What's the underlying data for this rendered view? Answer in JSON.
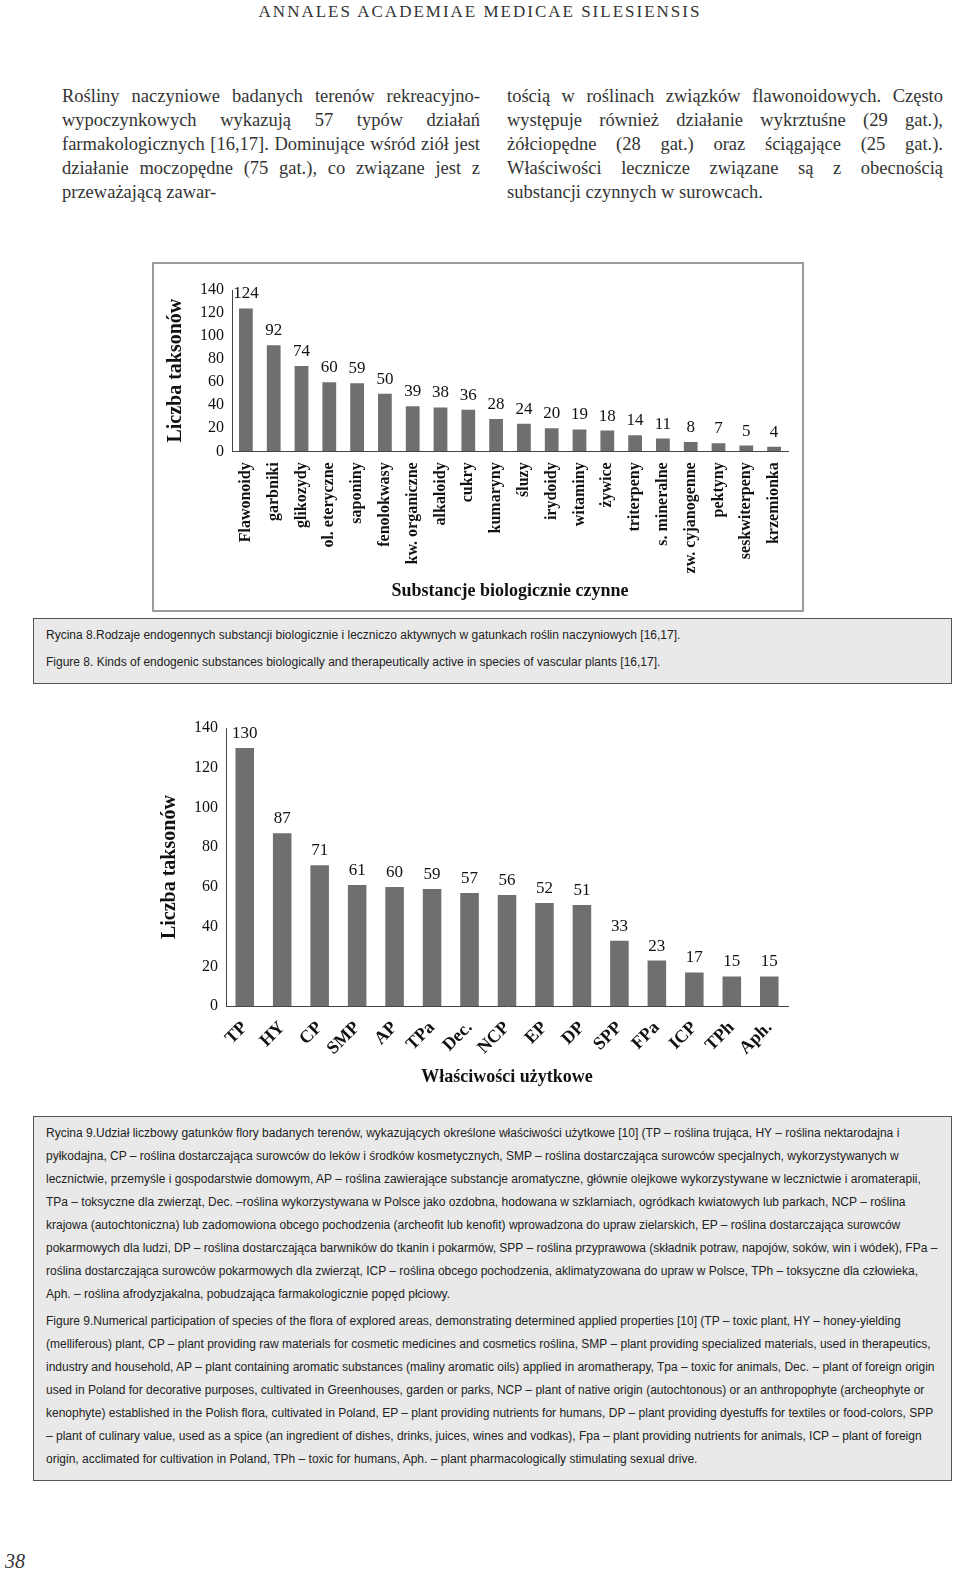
{
  "header": "ANNALES ACADEMIAE MEDICAE SILESIENSIS",
  "columns": [
    "Rośliny naczyniowe badanych terenów rekreacyjno-wypoczynkowych wykazują 57 typów działań farmakologicznych [16,17]. Dominujące wśród ziół jest działanie moczopędne (75 gat.), co związane jest z przeważającą zawar-",
    "tością w roślinach związków flawonoidowych. Często występuje również działanie wykrztuśne (29 gat.), żółciopędne (28 gat.) oraz ściągające (25 gat.). Właściwości lecznicze związane są z obecnością substancji czynnych w surowcach."
  ],
  "chart_data": [
    {
      "type": "bar",
      "x_label": "Substancje biologicznie czynne",
      "y_label": "Liczba taksonów",
      "categories": [
        "Flawonoidy",
        "garbniki",
        "glikozydy",
        "ol. eteryczne",
        "saponiny",
        "fenolokwasy",
        "kw. organiczne",
        "alkaloidy",
        "cukry",
        "kumaryny",
        "śluzy",
        "irydoidy",
        "witaminy",
        "żywice",
        "triterpeny",
        "s. mineralne",
        "zw. cyjanogenne",
        "pektyny",
        "seskwiterpeny",
        "krzemionka"
      ],
      "values": [
        124,
        92,
        74,
        60,
        59,
        50,
        39,
        38,
        36,
        28,
        24,
        20,
        19,
        18,
        14,
        11,
        8,
        7,
        5,
        4
      ],
      "color": "#6f6f6f",
      "ylim": [
        0,
        140
      ],
      "yticks": [
        0,
        20,
        40,
        60,
        80,
        100,
        120,
        140
      ],
      "grid": false,
      "data_labels": true
    },
    {
      "type": "bar",
      "x_label": "Właściwości użytkowe",
      "y_label": "Liczba taksonów",
      "categories": [
        "TP",
        "HY",
        "CP",
        "SMP",
        "AP",
        "TPa",
        "Dec.",
        "NCP",
        "EP",
        "DP",
        "SPP",
        "FPa",
        "ICP",
        "TPh",
        "Aph."
      ],
      "values": [
        130,
        87,
        71,
        61,
        60,
        59,
        57,
        56,
        52,
        51,
        33,
        23,
        17,
        15,
        15
      ],
      "color": "#6f6f6f",
      "ylim": [
        0,
        140
      ],
      "yticks": [
        0,
        20,
        40,
        60,
        80,
        100,
        120,
        140
      ],
      "grid": false,
      "data_labels": true
    }
  ],
  "captions": [
    [
      "Rycina 8.Rodzaje endogennych substancji biologicznie i leczniczo aktywnych w gatunkach roślin naczyniowych [16,17].",
      "Figure 8. Kinds of endogenic substances biologically and therapeutically active in species of vascular plants [16,17]."
    ],
    [
      "Rycina 9.Udział liczbowy gatunków flory badanych terenów, wykazujących określone właściwości użytkowe [10] (TP – roślina trująca, HY – roślina nektarodajna i pyłkodajna, CP – roślina dostarczająca surowców do leków i środków kosmetycznych, SMP – roślina dostarczająca surowców specjalnych, wykorzystywanych w lecznictwie, przemyśle i gospodarstwie domowym, AP – roślina zawierające substancje aromatyczne, głównie olejkowe wykorzystywane w lecznictwie i aromaterapii, TPa – toksyczne dla zwierząt, Dec. –roślina wykorzystywana w Polsce jako ozdobna, hodowana w szklarniach, ogródkach kwiatowych lub parkach, NCP – roślina krajowa (autochtoniczna) lub zadomowiona obcego pochodzenia (archeofit lub kenofit) wprowadzona do upraw zielarskich, EP – roślina dostarczająca surowców pokarmowych dla ludzi, DP – roślina dostarczająca barwników do tkanin i pokarmów, SPP – roślina przyprawowa (składnik potraw, napojów, soków, win i wódek), FPa – roślina dostarczająca surowców pokarmowych dla zwierząt, ICP – roślina obcego pochodzenia, aklimatyzowana do upraw w Polsce, TPh – toksyczne dla człowieka, Aph. – roślina afrodyzjakalna, pobudzająca farmakologicznie popęd płciowy.",
      "Figure 9.Numerical participation of species of the flora of explored areas, demonstrating determined applied properties [10] (TP – toxic plant, HY – honey-yielding (melliferous) plant, CP – plant providing raw materials for cosmetic medicines and cosmetics roślina, SMP – plant providing specialized materials, used in therapeutics, industry and household, AP – plant containing aromatic substances (maliny aromatic oils) applied in aromatherapy, Tpa – toxic for animals, Dec. – plant of foreign origin used in Poland for decorative purposes, cultivated in Greenhouses, garden or parks, NCP – plant of native origin (autochtonous) or an anthropophyte (archeophyte or kenophyte) established in the Polish flora, cultivated in Poland, EP – plant providing nutrients for humans, DP – plant providing dyestuffs for textiles or food-colors, SPP – plant of culinary value, used as a spice (an ingredient of dishes, drinks, juices, wines and vodkas), Fpa – plant providing nutrients for animals, ICP – plant of foreign origin, acclimated for cultivation in Poland, TPh – toxic for humans, Aph. – plant pharmacologically stimulating sexual drive."
    ]
  ],
  "page_number": "38"
}
